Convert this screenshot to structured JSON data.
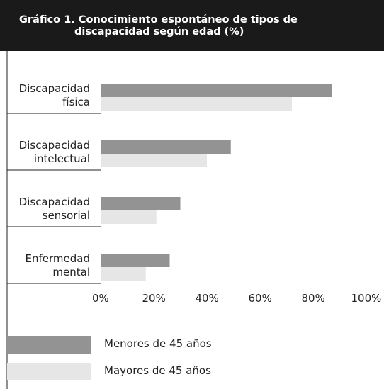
{
  "chart_data": {
    "type": "barh",
    "title": "Gráfico 1. Conocimiento espontáneo de tipos de discapacidad según edad (%)",
    "categories": [
      "Discapacidad física",
      "Discapacidad intelectual",
      "Discapacidad sensorial",
      "Enfermedad mental"
    ],
    "series": [
      {
        "name": "Menores de 45 años",
        "color": "#939393",
        "values": [
          87,
          49,
          30,
          26
        ]
      },
      {
        "name": "Mayores de 45 años",
        "color": "#e6e6e7",
        "values": [
          72,
          40,
          21,
          17
        ]
      }
    ],
    "xlim": [
      0,
      100
    ],
    "xticks": [
      {
        "value": 0,
        "label": "0%"
      },
      {
        "value": 20,
        "label": "20%"
      },
      {
        "value": 40,
        "label": "40%"
      },
      {
        "value": 60,
        "label": "60%"
      },
      {
        "value": 80,
        "label": "80%"
      },
      {
        "value": 100,
        "label": "100%"
      }
    ],
    "legend": "bottom-left"
  }
}
